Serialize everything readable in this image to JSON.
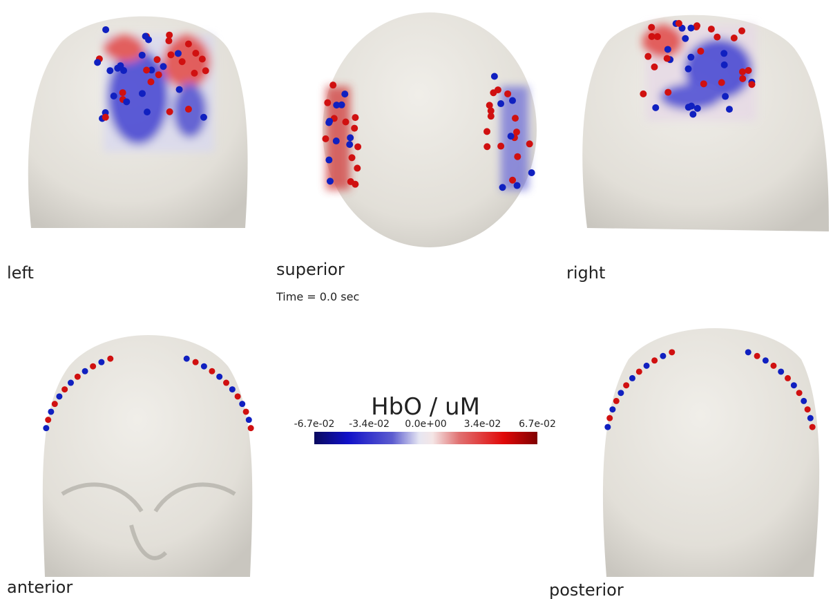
{
  "views": {
    "left": "left",
    "superior": "superior",
    "right": "right",
    "anterior": "anterior",
    "posterior": "posterior"
  },
  "time_label": "Time = 0.0 sec",
  "colorbar": {
    "title": "HbO / uM",
    "lim": [
      -0.067,
      0.067
    ],
    "ticks": [
      {
        "value": -0.067,
        "label": "-6.7e-02"
      },
      {
        "value": -0.034,
        "label": "-3.4e-02"
      },
      {
        "value": 0,
        "label": "0.0e+00"
      },
      {
        "value": 0.034,
        "label": "3.4e-02"
      },
      {
        "value": 0.067,
        "label": "6.7e-02"
      }
    ]
  }
}
